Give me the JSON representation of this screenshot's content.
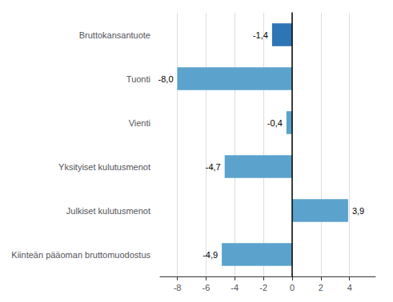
{
  "chart_data": {
    "type": "bar",
    "orientation": "horizontal",
    "categories": [
      "Kiinteän pääoman bruttomuodostus",
      "Julkiset kulutusmenot",
      "Yksityiset kulutusmenot",
      "Vienti",
      "Tuonti",
      "Bruttokansantuote"
    ],
    "values": [
      -4.9,
      3.9,
      -4.7,
      -0.4,
      -8.0,
      -1.4
    ],
    "value_labels": [
      "-4,9",
      "3,9",
      "-4,7",
      "-0,4",
      "-8,0",
      "-1,4"
    ],
    "data_labels": true,
    "colors": [
      "#5BA3CC",
      "#5BA3CC",
      "#5BA3CC",
      "#5BA3CC",
      "#5BA3CC",
      "#2E75B6"
    ],
    "xlim": [
      -9.2,
      5.8
    ],
    "xticks": [
      -8,
      -6,
      -4,
      -2,
      0,
      2,
      4
    ],
    "grid": true
  }
}
